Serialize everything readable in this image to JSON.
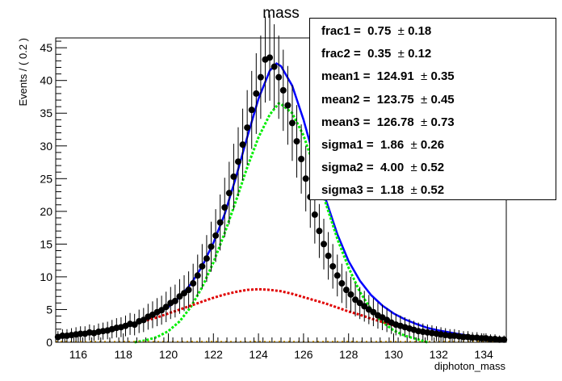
{
  "chart_data": {
    "type": "scatter",
    "title": "mass",
    "xlabel": "diphoton_mass",
    "ylabel": "Events / ( 0.2 )",
    "xlim": [
      115,
      135
    ],
    "ylim": [
      0,
      46.5
    ],
    "x_ticks": [
      116,
      118,
      120,
      122,
      124,
      126,
      128,
      130,
      132,
      134
    ],
    "y_ticks": [
      0,
      5,
      10,
      15,
      20,
      25,
      30,
      35,
      40,
      45
    ],
    "grid": false,
    "legend": "none",
    "fit_parameters": [
      {
        "name": "frac1",
        "value": "0.75",
        "error": "0.18"
      },
      {
        "name": "frac2",
        "value": "0.35",
        "error": "0.12"
      },
      {
        "name": "mean1",
        "value": "124.91",
        "error": "0.35"
      },
      {
        "name": "mean2",
        "value": "123.75",
        "error": "0.45"
      },
      {
        "name": "mean3",
        "value": "126.78",
        "error": "0.73"
      },
      {
        "name": "sigma1",
        "value": "1.86",
        "error": "0.26"
      },
      {
        "name": "sigma2",
        "value": "4.00",
        "error": "0.52"
      },
      {
        "name": "sigma3",
        "value": "1.18",
        "error": "0.52"
      }
    ],
    "series": [
      {
        "style": "points-with-errors",
        "color": "#000000",
        "x": [
          115.1,
          115.3,
          115.5,
          115.7,
          115.9,
          116.1,
          116.3,
          116.5,
          116.7,
          116.9,
          117.1,
          117.3,
          117.5,
          117.7,
          117.9,
          118.1,
          118.3,
          118.5,
          118.7,
          118.9,
          119.1,
          119.3,
          119.5,
          119.7,
          119.9,
          120.1,
          120.3,
          120.5,
          120.7,
          120.9,
          121.1,
          121.3,
          121.5,
          121.7,
          121.9,
          122.1,
          122.3,
          122.5,
          122.7,
          122.9,
          123.1,
          123.3,
          123.5,
          123.7,
          123.9,
          124.1,
          124.3,
          124.5,
          124.7,
          124.9,
          125.1,
          125.3,
          125.5,
          125.7,
          125.9,
          126.1,
          126.3,
          126.5,
          126.7,
          126.9,
          127.1,
          127.3,
          127.5,
          127.7,
          127.9,
          128.1,
          128.3,
          128.5,
          128.7,
          128.9,
          129.1,
          129.3,
          129.5,
          129.7,
          129.9,
          130.1,
          130.3,
          130.5,
          130.7,
          130.9,
          131.1,
          131.3,
          131.5,
          131.7,
          131.9,
          132.1,
          132.3,
          132.5,
          132.7,
          132.9,
          133.1,
          133.3,
          133.5,
          133.7,
          133.9,
          134.1,
          134.3,
          134.5,
          134.7,
          134.9
        ],
        "y": [
          0.8,
          1.0,
          1.0,
          1.1,
          1.2,
          1.3,
          1.3,
          1.5,
          1.4,
          1.6,
          1.7,
          1.8,
          2.0,
          2.2,
          2.3,
          2.5,
          2.8,
          2.7,
          3.2,
          3.4,
          3.9,
          4.2,
          4.6,
          4.9,
          5.4,
          6.0,
          6.3,
          7.0,
          7.5,
          8.0,
          9.0,
          10.2,
          11.6,
          12.8,
          14.6,
          16.3,
          18.3,
          20.6,
          22.8,
          25.3,
          27.6,
          30.2,
          32.8,
          35.5,
          38.0,
          40.5,
          43.2,
          43.5,
          42.1,
          40.5,
          38.5,
          36.2,
          33.5,
          30.7,
          28.0,
          25.0,
          22.2,
          19.5,
          17.0,
          15.0,
          13.2,
          11.6,
          10.2,
          9.0,
          8.0,
          7.3,
          6.5,
          6.0,
          5.5,
          5.0,
          4.6,
          4.1,
          3.8,
          3.4,
          3.0,
          2.7,
          2.5,
          2.3,
          2.1,
          1.9,
          1.7,
          1.6,
          1.5,
          1.4,
          1.3,
          1.2,
          1.1,
          1.0,
          1.0,
          0.9,
          0.8,
          0.8,
          0.7,
          0.7,
          0.6,
          0.6,
          0.5,
          0.5,
          0.4,
          0.4
        ]
      },
      {
        "style": "solid-line",
        "color": "#0000ff",
        "x": [
          115.0,
          115.5,
          116.0,
          116.5,
          117.0,
          117.5,
          118.0,
          118.5,
          119.0,
          119.5,
          120.0,
          120.5,
          121.0,
          121.5,
          122.0,
          122.5,
          123.0,
          123.5,
          124.0,
          124.5,
          124.8,
          125.0,
          125.5,
          126.0,
          126.5,
          127.0,
          127.5,
          128.0,
          128.5,
          129.0,
          129.5,
          130.0,
          130.5,
          131.0,
          131.5,
          132.0,
          132.5,
          133.0,
          133.5,
          134.0,
          134.5,
          135.0
        ],
        "y": [
          0.8,
          1.0,
          1.2,
          1.4,
          1.7,
          2.0,
          2.4,
          2.9,
          3.5,
          4.4,
          5.4,
          6.9,
          8.9,
          11.6,
          15.2,
          19.6,
          25.2,
          31.3,
          37.2,
          41.5,
          42.6,
          42.2,
          39.2,
          34.0,
          27.8,
          21.7,
          16.5,
          12.4,
          9.4,
          7.2,
          5.6,
          4.4,
          3.5,
          2.8,
          2.2,
          1.8,
          1.5,
          1.2,
          0.9,
          0.7,
          0.6,
          0.5
        ]
      },
      {
        "style": "dashed-line",
        "color": "#00ee00",
        "x": [
          118.5,
          119.0,
          119.5,
          120.0,
          120.5,
          121.0,
          121.5,
          122.0,
          122.5,
          123.0,
          123.5,
          124.0,
          124.5,
          124.9,
          125.0,
          125.5,
          126.0,
          126.5,
          127.0,
          127.5,
          128.0,
          128.5,
          129.0,
          129.5,
          130.0,
          130.5,
          131.0,
          131.5
        ],
        "y": [
          0.0,
          0.3,
          0.8,
          1.7,
          3.2,
          5.4,
          8.4,
          12.2,
          16.7,
          21.6,
          26.7,
          31.3,
          34.8,
          36.5,
          36.4,
          35.0,
          31.6,
          26.6,
          21.1,
          15.8,
          11.4,
          7.7,
          5.0,
          3.1,
          1.8,
          1.0,
          0.5,
          0.0
        ]
      },
      {
        "style": "dashed-line",
        "color": "#e00000",
        "x": [
          115.0,
          115.5,
          116.0,
          116.5,
          117.0,
          117.5,
          118.0,
          118.5,
          119.0,
          119.5,
          120.0,
          120.5,
          121.0,
          121.5,
          122.0,
          122.5,
          123.0,
          123.5,
          124.0,
          124.5,
          125.0,
          125.5,
          126.0,
          126.5,
          127.0,
          127.5,
          128.0,
          128.5,
          129.0,
          129.5,
          130.0,
          130.5,
          131.0,
          131.5,
          132.0,
          132.5,
          133.0,
          133.5,
          134.0,
          134.5,
          135.0
        ],
        "y": [
          0.7,
          0.9,
          1.1,
          1.3,
          1.6,
          2.0,
          2.4,
          2.8,
          3.3,
          3.8,
          4.4,
          5.0,
          5.6,
          6.2,
          6.8,
          7.3,
          7.7,
          8.0,
          8.1,
          8.0,
          7.8,
          7.4,
          6.9,
          6.4,
          5.9,
          5.3,
          4.7,
          4.2,
          3.6,
          3.1,
          2.6,
          2.2,
          1.8,
          1.5,
          1.2,
          0.9,
          0.7,
          0.6,
          0.4,
          0.3,
          0.2
        ]
      },
      {
        "style": "dotted-line",
        "color": "#e0a000",
        "x": [
          115.0,
          135.0
        ],
        "y": [
          0.1,
          0.1
        ]
      }
    ]
  }
}
